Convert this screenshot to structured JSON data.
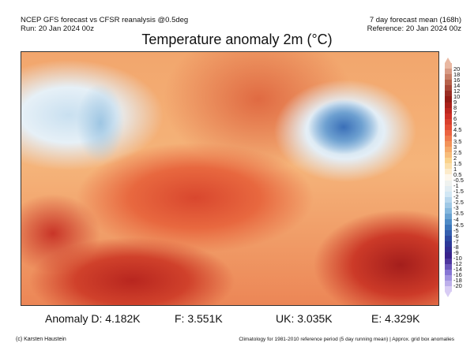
{
  "header": {
    "left_line1": "NCEP GFS forecast vs CFSR reanalysis @0.5deg",
    "left_line2": "Run: 20 Jan 2024 00z",
    "right_line1": "7 day forecast mean (168h)",
    "right_line2": "Reference: 20 Jan 2024 00z"
  },
  "title": "Temperature anomaly 2m (°C)",
  "colorbar": {
    "labels": [
      "20",
      "18",
      "16",
      "14",
      "12",
      "10",
      "9",
      "8",
      "7",
      "6",
      "5",
      "4.5",
      "4",
      "3.5",
      "3",
      "2.5",
      "2",
      "1.5",
      "1",
      "0.5",
      "-0.5",
      "-1",
      "-1.5",
      "-2",
      "-2.5",
      "-3",
      "-3.5",
      "-4",
      "-4.5",
      "-5",
      "-6",
      "-7",
      "-8",
      "-9",
      "-10",
      "-12",
      "-14",
      "-16",
      "-18",
      "-20"
    ],
    "color_stops": [
      "#e9b8a2",
      "#b8664e",
      "#8e1a14",
      "#c92a22",
      "#e9553a",
      "#f39a5c",
      "#fad58f",
      "#fdf7ec",
      "#d6e9f5",
      "#8cbde0",
      "#3f7fbf",
      "#2a3f9c",
      "#3a1f8a",
      "#8a7ad8",
      "#d8ccf4"
    ]
  },
  "anomalies": {
    "d": "Anomaly D: 4.182K",
    "f": "F: 3.551K",
    "uk": "UK: 3.035K",
    "e": "E: 4.329K"
  },
  "footer": {
    "credit": "(c) Karsten Haustein",
    "note": "Climatology for 1981-2010 reference period (5 day running mean) | Approx. grid box anomalies"
  }
}
